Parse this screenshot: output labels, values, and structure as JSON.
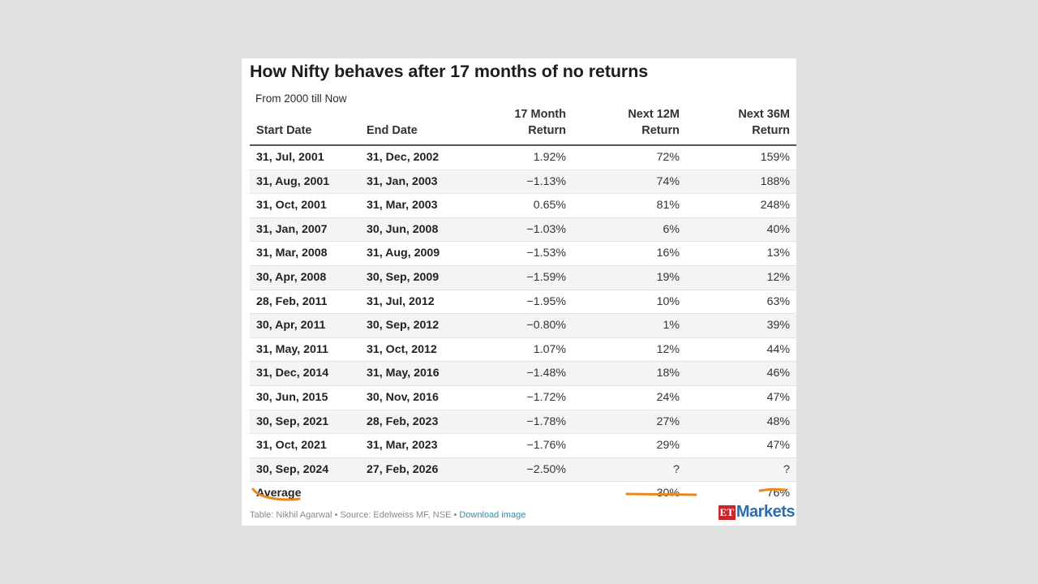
{
  "title": "How Nifty behaves after 17 months of no returns",
  "subtitle": "From 2000 till Now",
  "headers": {
    "start_date": "Start Date",
    "end_date": "End Date",
    "r17_line1": "17 Month",
    "r17_line2": "Return",
    "n12_line1": "Next 12M",
    "n12_line2": "Return",
    "n36_line1": "Next 36M",
    "n36_line2": "Return"
  },
  "rows": [
    {
      "start": "31, Jul, 2001",
      "end": "31, Dec, 2002",
      "r17": "1.92%",
      "n12": "72%",
      "n36": "159%"
    },
    {
      "start": "31, Aug, 2001",
      "end": "31, Jan, 2003",
      "r17": "−1.13%",
      "n12": "74%",
      "n36": "188%"
    },
    {
      "start": "31, Oct, 2001",
      "end": "31, Mar, 2003",
      "r17": "0.65%",
      "n12": "81%",
      "n36": "248%"
    },
    {
      "start": "31, Jan, 2007",
      "end": "30, Jun, 2008",
      "r17": "−1.03%",
      "n12": "6%",
      "n36": "40%"
    },
    {
      "start": "31, Mar, 2008",
      "end": "31, Aug, 2009",
      "r17": "−1.53%",
      "n12": "16%",
      "n36": "13%"
    },
    {
      "start": "30, Apr, 2008",
      "end": "30, Sep, 2009",
      "r17": "−1.59%",
      "n12": "19%",
      "n36": "12%"
    },
    {
      "start": "28, Feb, 2011",
      "end": "31, Jul, 2012",
      "r17": "−1.95%",
      "n12": "10%",
      "n36": "63%"
    },
    {
      "start": "30, Apr, 2011",
      "end": "30, Sep, 2012",
      "r17": "−0.80%",
      "n12": "1%",
      "n36": "39%"
    },
    {
      "start": "31, May, 2011",
      "end": "31, Oct, 2012",
      "r17": "1.07%",
      "n12": "12%",
      "n36": "44%"
    },
    {
      "start": "31, Dec, 2014",
      "end": "31, May, 2016",
      "r17": "−1.48%",
      "n12": "18%",
      "n36": "46%"
    },
    {
      "start": "30, Jun, 2015",
      "end": "30, Nov, 2016",
      "r17": "−1.72%",
      "n12": "24%",
      "n36": "47%"
    },
    {
      "start": "30, Sep, 2021",
      "end": "28, Feb, 2023",
      "r17": "−1.78%",
      "n12": "27%",
      "n36": "48%"
    },
    {
      "start": "31, Oct, 2021",
      "end": "31, Mar, 2023",
      "r17": "−1.76%",
      "n12": "29%",
      "n36": "47%"
    },
    {
      "start": "30, Sep, 2024",
      "end": "27, Feb, 2026",
      "r17": "−2.50%",
      "n12": "?",
      "n36": "?"
    }
  ],
  "average": {
    "label": "Average",
    "r17": "",
    "n12": "30%",
    "n36": "76%"
  },
  "footer": {
    "table_by": "Table: Nikhil Agarwal",
    "separator1": " • ",
    "source": "Source: Edelweiss MF, NSE",
    "separator2": " • ",
    "download": "Download image"
  },
  "logo": {
    "et": "ET",
    "markets": "Markets"
  },
  "colors": {
    "highlight": "#e8891f",
    "logo_red": "#c9262c",
    "logo_blue": "#2a6db5",
    "link": "#2f8fb0"
  }
}
